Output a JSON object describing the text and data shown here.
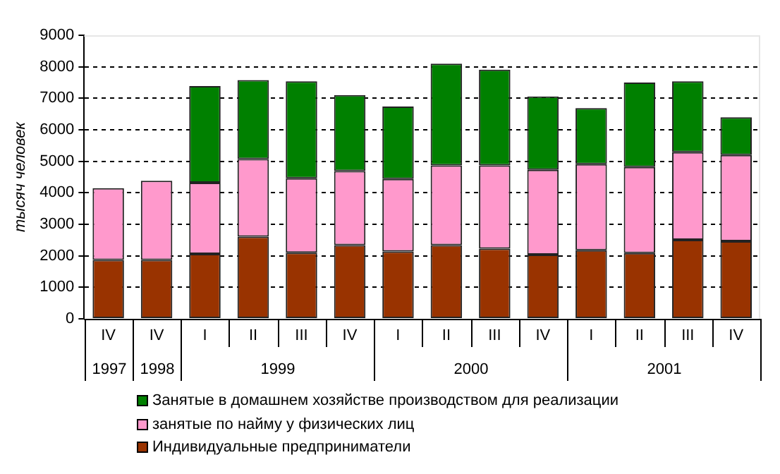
{
  "chart_data": {
    "type": "bar",
    "stacked": true,
    "ylabel": "тысяч человек",
    "categories": [
      "IV",
      "IV",
      "I",
      "II",
      "III",
      "IV",
      "I",
      "II",
      "III",
      "IV",
      "I",
      "II",
      "III",
      "IV"
    ],
    "annotations": [
      "1997",
      "1998",
      "1999",
      "2000",
      "2001"
    ],
    "series": [
      {
        "name": "Индивидуальные предприниматели",
        "color": "#993300",
        "values": [
          1870,
          1870,
          2060,
          2610,
          2100,
          2340,
          2140,
          2340,
          2230,
          2040,
          2180,
          2090,
          2510,
          2460
        ]
      },
      {
        "name": "занятые по найму у физических лиц",
        "color": "#ff99cc",
        "values": [
          2280,
          2510,
          2260,
          2460,
          2360,
          2350,
          2300,
          2530,
          2640,
          2690,
          2730,
          2730,
          2780,
          2740
        ]
      },
      {
        "name": "Занятые в домашнем хозяйстве производством для реализации",
        "color": "#008000",
        "values": [
          null,
          null,
          3070,
          2510,
          3080,
          2410,
          2300,
          3230,
          3040,
          2330,
          1780,
          2680,
          2250,
          1200
        ]
      }
    ],
    "ylim": [
      0,
      9000
    ],
    "yticks": [
      0,
      1000,
      2000,
      3000,
      4000,
      5000,
      6000,
      7000,
      8000,
      9000
    ],
    "grid": "y",
    "legend": "bottom"
  }
}
